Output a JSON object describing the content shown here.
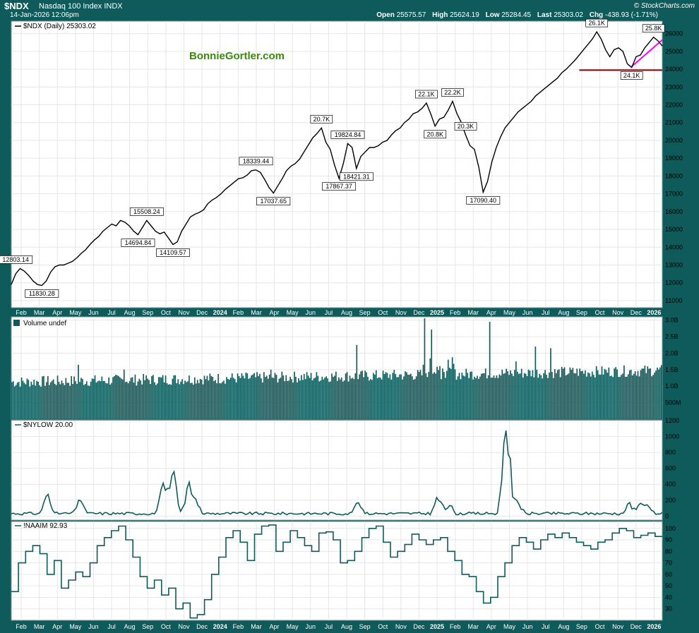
{
  "header": {
    "symbol": "$NDX",
    "name": "Nasdaq 100 Index  INDX",
    "datetime": "14-Jan-2026 12:06pm",
    "brand": "© StockCharts.com",
    "open_label": "Open",
    "open": "25575.57",
    "high_label": "High",
    "high": "25624.19",
    "low_label": "Low",
    "low": "25284.45",
    "last_label": "Last",
    "last": "25303.02",
    "chg_label": "Chg",
    "chg": "-438.93 (-1.71%)"
  },
  "colors": {
    "frame": "#0f5a5a",
    "price": "#000000",
    "volume": "#0f5a5a",
    "support": "#8b0000",
    "trend": "#ff00ff",
    "watermark": "#3a8a0a"
  },
  "watermark": "BonnieGortler.com",
  "months": [
    "Feb",
    "Mar",
    "Apr",
    "May",
    "Jun",
    "Jul",
    "Aug",
    "Sep",
    "Oct",
    "Nov",
    "Dec",
    "2024",
    "Feb",
    "Mar",
    "Apr",
    "May",
    "Jun",
    "Jul",
    "Aug",
    "Sep",
    "Oct",
    "Nov",
    "Dec",
    "2025",
    "Feb",
    "Mar",
    "Apr",
    "May",
    "Jun",
    "Jul",
    "Aug",
    "Sep",
    "Oct",
    "Nov",
    "Dec",
    "2026"
  ],
  "chart_data": [
    {
      "type": "line",
      "title": "$NDX (Daily) 25303.02",
      "ylim": [
        10600,
        26700
      ],
      "yticks": [
        11000,
        12000,
        13000,
        14000,
        15000,
        16000,
        17000,
        18000,
        19000,
        20000,
        21000,
        22000,
        23000,
        24000,
        25000,
        26000
      ],
      "x": [
        0,
        5,
        10,
        15,
        20,
        25,
        30,
        35,
        40,
        45,
        50,
        55,
        60,
        65,
        70,
        75,
        80,
        85,
        90,
        95,
        100,
        105,
        110,
        115,
        120,
        125,
        130,
        135,
        140,
        145,
        150,
        155,
        160,
        165,
        170,
        175,
        180,
        185,
        190,
        195,
        200,
        205,
        210,
        215,
        220,
        225,
        230,
        235,
        240,
        245,
        250,
        255,
        260,
        265,
        270,
        275,
        280,
        285,
        290,
        295,
        300,
        305,
        310,
        315,
        320,
        325,
        330,
        335,
        340,
        345,
        350,
        355,
        360,
        365,
        370,
        375,
        380,
        385,
        390,
        395,
        400,
        405,
        410,
        415,
        420,
        425,
        430,
        435,
        440,
        445,
        450,
        455,
        460,
        465,
        470,
        475,
        480,
        485,
        490,
        495,
        500,
        505,
        510,
        515,
        520,
        525,
        530,
        535,
        540,
        545,
        550,
        555,
        560,
        565,
        570,
        575,
        580,
        585,
        590,
        595,
        600,
        605,
        610,
        615,
        620,
        625,
        630,
        635,
        640,
        645,
        650,
        655,
        660,
        665,
        670,
        675,
        680,
        685,
        690,
        695,
        700,
        705,
        710,
        715,
        720,
        725,
        730,
        735,
        740,
        745
      ],
      "values": [
        11900,
        12500,
        12800,
        12650,
        12400,
        12100,
        11900,
        11850,
        12100,
        12600,
        12900,
        13000,
        13000,
        13100,
        13200,
        13400,
        13650,
        13850,
        14150,
        14400,
        14600,
        14900,
        15100,
        15300,
        15200,
        15500,
        15400,
        15200,
        14900,
        14700,
        15100,
        15500,
        15200,
        14900,
        14750,
        14850,
        14500,
        14150,
        14300,
        14900,
        15300,
        15700,
        15850,
        15950,
        16100,
        16450,
        16650,
        16800,
        17000,
        17250,
        17450,
        17650,
        17850,
        17900,
        18050,
        18300,
        18340,
        18200,
        17800,
        17350,
        17040,
        17450,
        17850,
        18300,
        18550,
        18700,
        18950,
        19350,
        19750,
        20150,
        20400,
        20700,
        19900,
        19500,
        18600,
        17870,
        18700,
        19824,
        19600,
        18421,
        19100,
        19350,
        19600,
        19600,
        19700,
        19900,
        20000,
        20300,
        20550,
        20700,
        21000,
        21200,
        21500,
        21600,
        21800,
        22100,
        21500,
        20800,
        21200,
        21300,
        21700,
        22200,
        21500,
        21000,
        20300,
        19700,
        19500,
        18500,
        17090,
        17700,
        18800,
        19600,
        20200,
        20700,
        21000,
        21300,
        21600,
        21800,
        22000,
        22200,
        22500,
        22700,
        22900,
        23100,
        23300,
        23500,
        23800,
        24000,
        24250,
        24500,
        24800,
        25100,
        25400,
        25700,
        26100,
        25700,
        25100,
        24700,
        25100,
        25200,
        25000,
        24300,
        24100,
        24700,
        24800,
        25200,
        25500,
        25800,
        25600,
        25303
      ],
      "annotations": [
        {
          "label": "12803.14",
          "x": 5,
          "y": 12803
        },
        {
          "label": "11830.28",
          "x": 35,
          "y": 11850
        },
        {
          "label": "15508.24",
          "x": 155,
          "y": 15500
        },
        {
          "label": "14694.84",
          "x": 145,
          "y": 14700
        },
        {
          "label": "14109.57",
          "x": 185,
          "y": 14150
        },
        {
          "label": "18339.44",
          "x": 280,
          "y": 18340
        },
        {
          "label": "17037.65",
          "x": 300,
          "y": 17040
        },
        {
          "label": "20.7K",
          "x": 355,
          "y": 20700
        },
        {
          "label": "19824.84",
          "x": 385,
          "y": 19824
        },
        {
          "label": "17867.37",
          "x": 375,
          "y": 17870
        },
        {
          "label": "18421.31",
          "x": 395,
          "y": 18421
        },
        {
          "label": "22.1K",
          "x": 475,
          "y": 22100
        },
        {
          "label": "20.8K",
          "x": 485,
          "y": 20800
        },
        {
          "label": "22.2K",
          "x": 505,
          "y": 22200
        },
        {
          "label": "20.3K",
          "x": 520,
          "y": 20300
        },
        {
          "label": "17090.40",
          "x": 540,
          "y": 17090
        },
        {
          "label": "26.1K",
          "x": 670,
          "y": 26100
        },
        {
          "label": "24.1K",
          "x": 710,
          "y": 24100
        },
        {
          "label": "25.8K",
          "x": 735,
          "y": 25800
        }
      ],
      "support_level": 23950
    },
    {
      "type": "bar",
      "title": "Volume undef",
      "ylim": [
        0,
        3100000000
      ],
      "yticks_labels": [
        "500M",
        "1.0B",
        "1.5B",
        "2.0B",
        "2.5B",
        "3.0B"
      ],
      "yticks": [
        500000000,
        1000000000,
        1500000000,
        2000000000,
        2500000000,
        3000000000
      ]
    },
    {
      "type": "line",
      "title": "$NYLOW 20.00",
      "ylim": [
        -50,
        1200
      ],
      "yticks": [
        0,
        200,
        400,
        600,
        800,
        1000,
        1200
      ]
    },
    {
      "type": "line",
      "title": "!NAAIM 92.93",
      "ylim": [
        20,
        106
      ],
      "yticks": [
        30,
        40,
        50,
        60,
        70,
        80,
        90,
        100
      ]
    }
  ]
}
